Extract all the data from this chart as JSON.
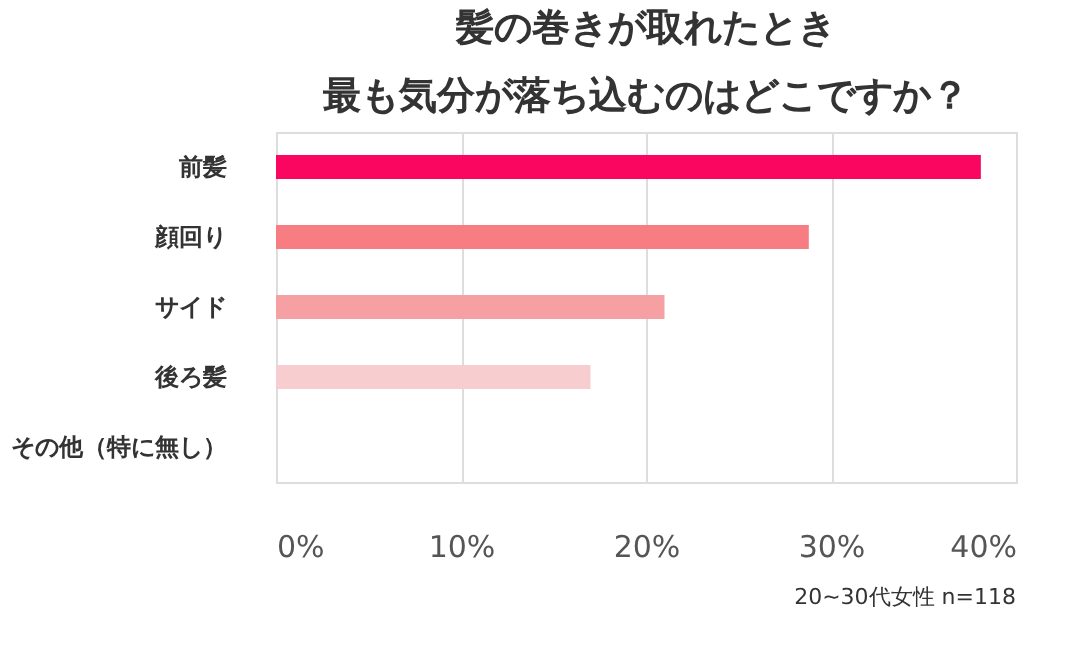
{
  "chart_data": {
    "type": "bar",
    "orientation": "horizontal",
    "title": [
      "髪の巻きが取れたとき",
      "最も気分が落ち込むのはどこですか？"
    ],
    "categories": [
      "前髪",
      "顔回り",
      "サイド",
      "後ろ髪",
      "その他（特に無し）"
    ],
    "values": [
      38.1,
      28.8,
      21.0,
      17.0,
      0
    ],
    "colors": [
      "#fa0560",
      "#f77d82",
      "#f6a0a4",
      "#f8cdd0",
      "#f8cdd0"
    ],
    "xlim": [
      0,
      40
    ],
    "xticks": [
      {
        "value": 0,
        "label": "0%"
      },
      {
        "value": 10,
        "label": "10%"
      },
      {
        "value": 20,
        "label": "20%"
      },
      {
        "value": 30,
        "label": "30%"
      },
      {
        "value": 40,
        "label": "40%"
      }
    ],
    "grid": "x",
    "annotations": [
      "20~30代女性 n=118"
    ]
  }
}
